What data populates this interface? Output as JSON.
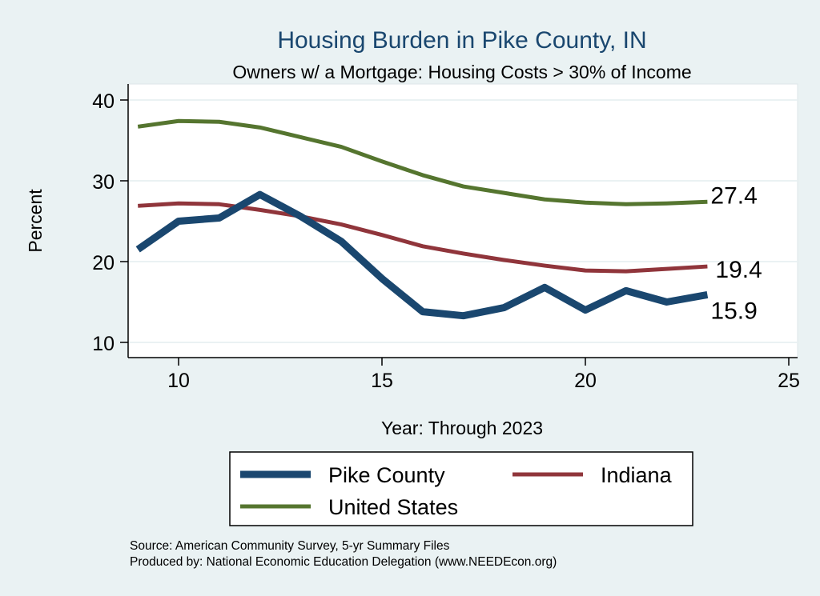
{
  "chart_data": {
    "type": "line",
    "title": "Housing Burden in Pike County, IN",
    "subtitle": "Owners w/ a Mortgage: Housing Costs > 30% of Income",
    "xlabel": "Year: Through 2023",
    "ylabel": "Percent",
    "xlim": [
      8.7,
      25.3
    ],
    "ylim": [
      8.2,
      41.9
    ],
    "xticks": [
      10,
      15,
      20,
      25
    ],
    "yticks": [
      10,
      20,
      30,
      40
    ],
    "grid": true,
    "legend_placement": "bottom",
    "x": [
      9,
      10,
      11,
      12,
      13,
      14,
      15,
      16,
      17,
      18,
      19,
      20,
      21,
      22,
      23
    ],
    "series": [
      {
        "name": "Pike County",
        "color": "#1a476f",
        "values": [
          21.5,
          25.0,
          25.4,
          28.3,
          25.6,
          22.5,
          17.9,
          13.8,
          13.3,
          14.3,
          16.8,
          14.0,
          16.4,
          15.0,
          15.9
        ],
        "end_label": "15.9"
      },
      {
        "name": "Indiana",
        "color": "#90353b",
        "values": [
          26.9,
          27.2,
          27.1,
          26.4,
          25.6,
          24.6,
          23.3,
          21.9,
          21.0,
          20.2,
          19.5,
          18.9,
          18.8,
          19.1,
          19.4
        ],
        "end_label": "19.4"
      },
      {
        "name": "United States",
        "color": "#55752f",
        "values": [
          36.7,
          37.4,
          37.3,
          36.6,
          35.4,
          34.2,
          32.4,
          30.7,
          29.3,
          28.5,
          27.7,
          27.3,
          27.1,
          27.2,
          27.4
        ],
        "end_label": "27.4"
      }
    ],
    "notes": [
      "Source: American Community Survey, 5-yr Summary Files",
      "Produced by: National Economic Education Delegation (www.NEEDEcon.org)"
    ]
  }
}
